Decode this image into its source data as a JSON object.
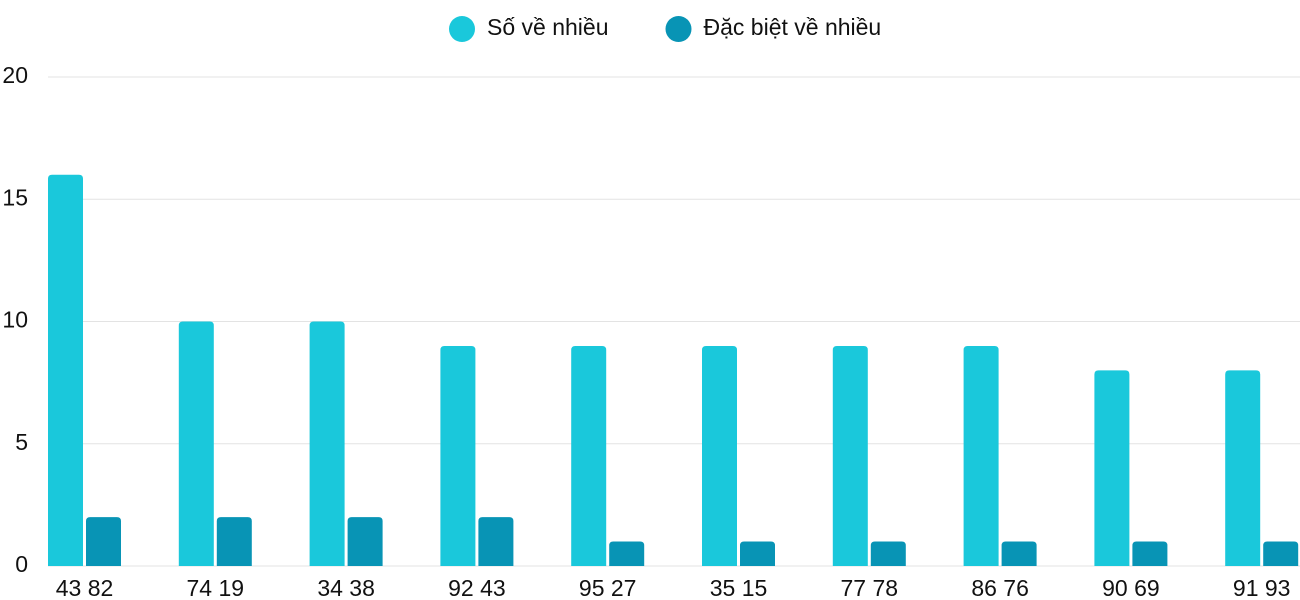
{
  "chart_data": {
    "type": "bar",
    "categories": [
      "43 82",
      "74 19",
      "34 38",
      "92 43",
      "95 27",
      "35 15",
      "77 78",
      "86 76",
      "90 69",
      "91 93"
    ],
    "series": [
      {
        "name": "Số về nhiều",
        "color": "#1ac8db",
        "values": [
          16,
          10,
          10,
          9,
          9,
          9,
          9,
          9,
          8,
          8
        ]
      },
      {
        "name": "Đặc biệt về nhiều",
        "color": "#0894b5",
        "values": [
          2,
          2,
          2,
          2,
          1,
          1,
          1,
          1,
          1,
          1
        ]
      }
    ],
    "ylim": [
      0,
      20
    ],
    "yticks": [
      0,
      5,
      10,
      15,
      20
    ],
    "grid": true,
    "legend": "top"
  }
}
